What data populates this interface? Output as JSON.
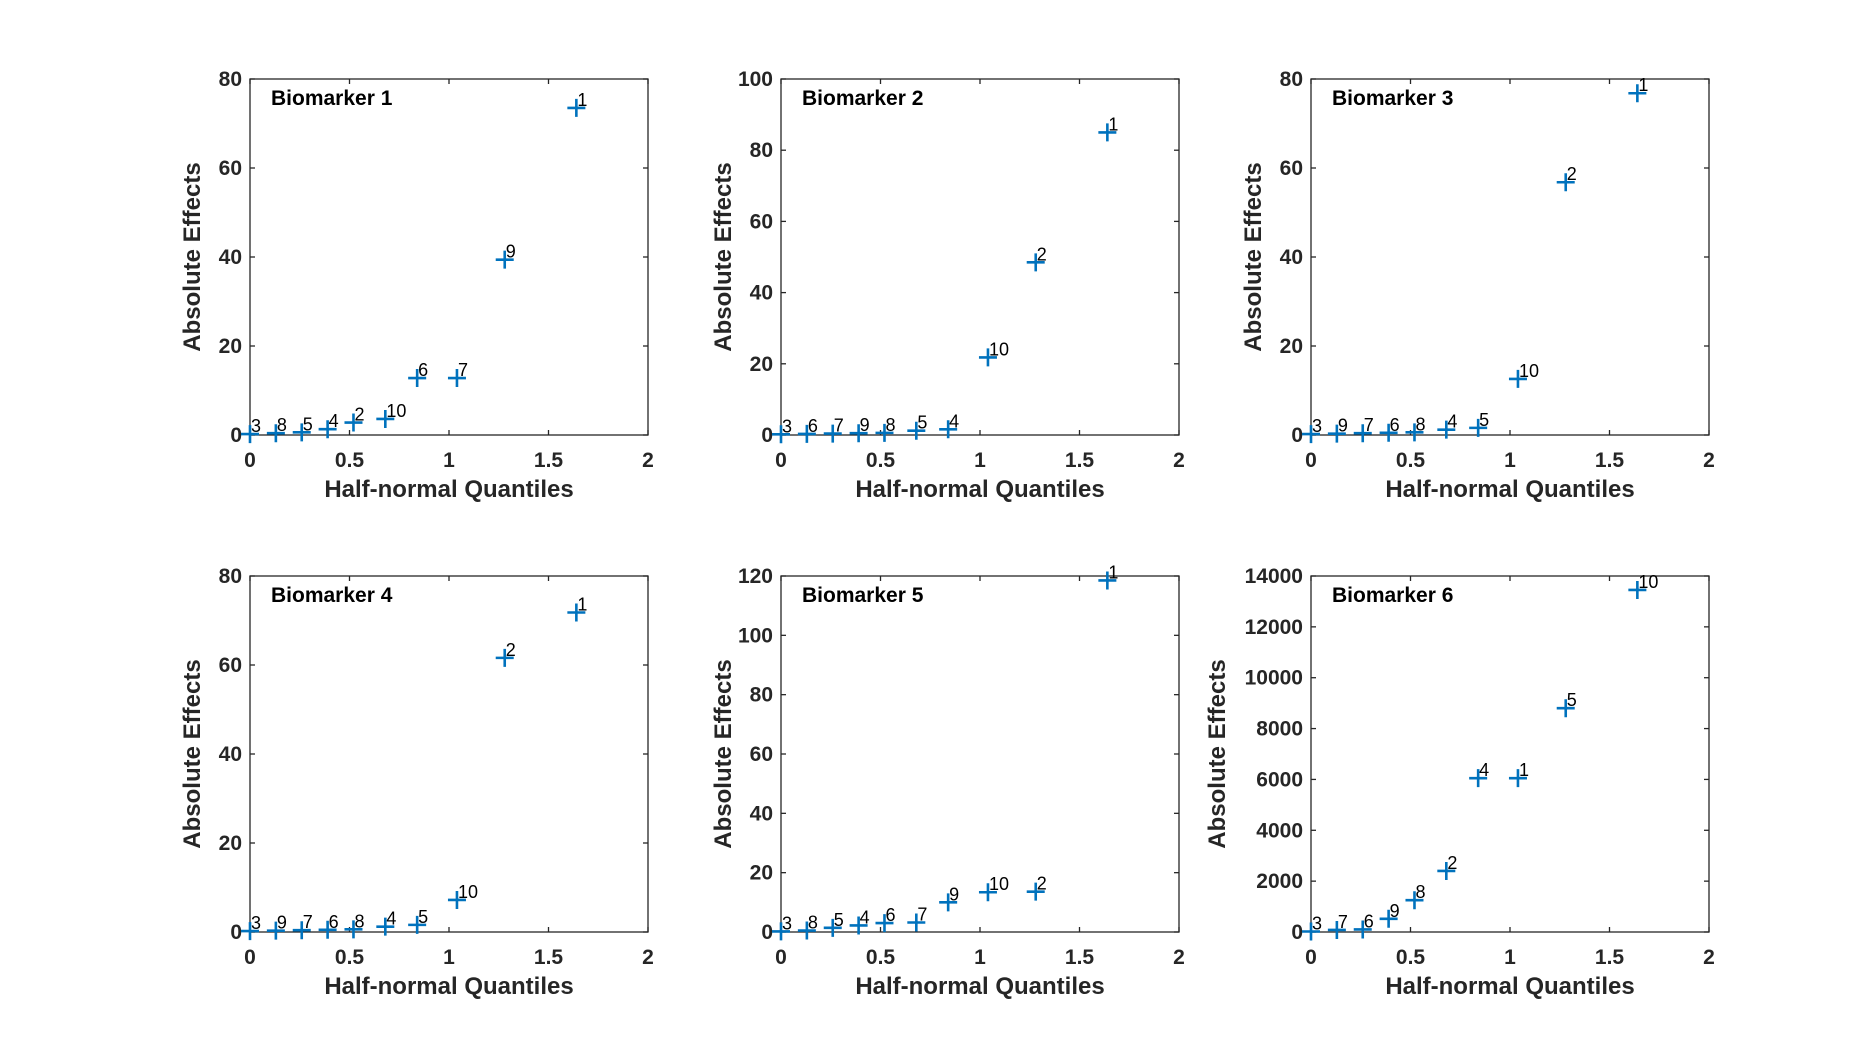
{
  "marker_color": "#0072BD",
  "chart_data": [
    {
      "type": "scatter",
      "title": "Biomarker 1",
      "xlabel": "Half-normal Quantiles",
      "ylabel": "Absolute Effects",
      "xlim": [
        0,
        2
      ],
      "ylim": [
        0,
        80
      ],
      "xticks": [
        0,
        0.5,
        1,
        1.5,
        2
      ],
      "xtick_labels": [
        "0",
        "0.5",
        "1",
        "1.5",
        "2"
      ],
      "yticks": [
        0,
        20,
        40,
        60,
        80
      ],
      "ytick_labels": [
        "0",
        "20",
        "40",
        "60",
        "80"
      ],
      "points": [
        {
          "x": 0.0,
          "y": 0.2,
          "label": "3"
        },
        {
          "x": 0.13,
          "y": 0.4,
          "label": "8"
        },
        {
          "x": 0.26,
          "y": 0.6,
          "label": "5"
        },
        {
          "x": 0.39,
          "y": 1.3,
          "label": "4"
        },
        {
          "x": 0.52,
          "y": 2.8,
          "label": "2"
        },
        {
          "x": 0.68,
          "y": 3.6,
          "label": "10"
        },
        {
          "x": 0.84,
          "y": 12.8,
          "label": "6"
        },
        {
          "x": 1.04,
          "y": 12.8,
          "label": "7"
        },
        {
          "x": 1.28,
          "y": 39.4,
          "label": "9"
        },
        {
          "x": 1.64,
          "y": 73.5,
          "label": "1"
        }
      ]
    },
    {
      "type": "scatter",
      "title": "Biomarker 2",
      "xlabel": "Half-normal Quantiles",
      "ylabel": "Absolute Effects",
      "xlim": [
        0,
        2
      ],
      "ylim": [
        0,
        100
      ],
      "xticks": [
        0,
        0.5,
        1,
        1.5,
        2
      ],
      "xtick_labels": [
        "0",
        "0.5",
        "1",
        "1.5",
        "2"
      ],
      "yticks": [
        0,
        20,
        40,
        60,
        80,
        100
      ],
      "ytick_labels": [
        "0",
        "20",
        "40",
        "60",
        "80",
        "100"
      ],
      "points": [
        {
          "x": 0.0,
          "y": 0.2,
          "label": "3"
        },
        {
          "x": 0.13,
          "y": 0.3,
          "label": "6"
        },
        {
          "x": 0.26,
          "y": 0.4,
          "label": "7"
        },
        {
          "x": 0.39,
          "y": 0.5,
          "label": "9"
        },
        {
          "x": 0.52,
          "y": 0.6,
          "label": "8"
        },
        {
          "x": 0.68,
          "y": 1.2,
          "label": "5"
        },
        {
          "x": 0.84,
          "y": 1.6,
          "label": "4"
        },
        {
          "x": 1.04,
          "y": 21.8,
          "label": "10"
        },
        {
          "x": 1.28,
          "y": 48.5,
          "label": "2"
        },
        {
          "x": 1.64,
          "y": 85.0,
          "label": "1"
        }
      ]
    },
    {
      "type": "scatter",
      "title": "Biomarker 3",
      "xlabel": "Half-normal Quantiles",
      "ylabel": "Absolute Effects",
      "xlim": [
        0,
        2
      ],
      "ylim": [
        0,
        80
      ],
      "xticks": [
        0,
        0.5,
        1,
        1.5,
        2
      ],
      "xtick_labels": [
        "0",
        "0.5",
        "1",
        "1.5",
        "2"
      ],
      "yticks": [
        0,
        20,
        40,
        60,
        80
      ],
      "ytick_labels": [
        "0",
        "20",
        "40",
        "60",
        "80"
      ],
      "points": [
        {
          "x": 0.0,
          "y": 0.2,
          "label": "3"
        },
        {
          "x": 0.13,
          "y": 0.3,
          "label": "9"
        },
        {
          "x": 0.26,
          "y": 0.4,
          "label": "7"
        },
        {
          "x": 0.39,
          "y": 0.5,
          "label": "6"
        },
        {
          "x": 0.52,
          "y": 0.6,
          "label": "8"
        },
        {
          "x": 0.68,
          "y": 1.2,
          "label": "4"
        },
        {
          "x": 0.84,
          "y": 1.6,
          "label": "5"
        },
        {
          "x": 1.04,
          "y": 12.6,
          "label": "10"
        },
        {
          "x": 1.28,
          "y": 56.8,
          "label": "2"
        },
        {
          "x": 1.64,
          "y": 76.8,
          "label": "1"
        }
      ]
    },
    {
      "type": "scatter",
      "title": "Biomarker 4",
      "xlabel": "Half-normal Quantiles",
      "ylabel": "Absolute Effects",
      "xlim": [
        0,
        2
      ],
      "ylim": [
        0,
        80
      ],
      "xticks": [
        0,
        0.5,
        1,
        1.5,
        2
      ],
      "xtick_labels": [
        "0",
        "0.5",
        "1",
        "1.5",
        "2"
      ],
      "yticks": [
        0,
        20,
        40,
        60,
        80
      ],
      "ytick_labels": [
        "0",
        "20",
        "40",
        "60",
        "80"
      ],
      "points": [
        {
          "x": 0.0,
          "y": 0.2,
          "label": "3"
        },
        {
          "x": 0.13,
          "y": 0.3,
          "label": "9"
        },
        {
          "x": 0.26,
          "y": 0.4,
          "label": "7"
        },
        {
          "x": 0.39,
          "y": 0.5,
          "label": "6"
        },
        {
          "x": 0.52,
          "y": 0.6,
          "label": "8"
        },
        {
          "x": 0.68,
          "y": 1.2,
          "label": "4"
        },
        {
          "x": 0.84,
          "y": 1.6,
          "label": "5"
        },
        {
          "x": 1.04,
          "y": 7.2,
          "label": "10"
        },
        {
          "x": 1.28,
          "y": 61.6,
          "label": "2"
        },
        {
          "x": 1.64,
          "y": 71.8,
          "label": "1"
        }
      ]
    },
    {
      "type": "scatter",
      "title": "Biomarker 5",
      "xlabel": "Half-normal Quantiles",
      "ylabel": "Absolute Effects",
      "xlim": [
        0,
        2
      ],
      "ylim": [
        0,
        120
      ],
      "xticks": [
        0,
        0.5,
        1,
        1.5,
        2
      ],
      "xtick_labels": [
        "0",
        "0.5",
        "1",
        "1.5",
        "2"
      ],
      "yticks": [
        0,
        20,
        40,
        60,
        80,
        100,
        120
      ],
      "ytick_labels": [
        "0",
        "20",
        "40",
        "60",
        "80",
        "100",
        "120"
      ],
      "points": [
        {
          "x": 0.0,
          "y": 0.2,
          "label": "3"
        },
        {
          "x": 0.13,
          "y": 0.5,
          "label": "8"
        },
        {
          "x": 0.26,
          "y": 1.4,
          "label": "5"
        },
        {
          "x": 0.39,
          "y": 2.2,
          "label": "4"
        },
        {
          "x": 0.52,
          "y": 3.0,
          "label": "6"
        },
        {
          "x": 0.68,
          "y": 3.2,
          "label": "7"
        },
        {
          "x": 0.84,
          "y": 10.0,
          "label": "9"
        },
        {
          "x": 1.04,
          "y": 13.4,
          "label": "10"
        },
        {
          "x": 1.28,
          "y": 13.6,
          "label": "2"
        },
        {
          "x": 1.64,
          "y": 118.5,
          "label": "1"
        }
      ]
    },
    {
      "type": "scatter",
      "title": "Biomarker 6",
      "xlabel": "Half-normal Quantiles",
      "ylabel": "Absolute Effects",
      "xlim": [
        0,
        2
      ],
      "ylim": [
        0,
        14000
      ],
      "xticks": [
        0,
        0.5,
        1,
        1.5,
        2
      ],
      "xtick_labels": [
        "0",
        "0.5",
        "1",
        "1.5",
        "2"
      ],
      "yticks": [
        0,
        2000,
        4000,
        6000,
        8000,
        10000,
        12000,
        14000
      ],
      "ytick_labels": [
        "0",
        "2000",
        "4000",
        "6000",
        "8000",
        "10000",
        "12000",
        "14000"
      ],
      "points": [
        {
          "x": 0.0,
          "y": 20,
          "label": "3"
        },
        {
          "x": 0.13,
          "y": 80,
          "label": "7"
        },
        {
          "x": 0.26,
          "y": 100,
          "label": "6"
        },
        {
          "x": 0.39,
          "y": 520,
          "label": "9"
        },
        {
          "x": 0.52,
          "y": 1250,
          "label": "8"
        },
        {
          "x": 0.68,
          "y": 2400,
          "label": "2"
        },
        {
          "x": 0.84,
          "y": 6050,
          "label": "4"
        },
        {
          "x": 1.04,
          "y": 6050,
          "label": "1"
        },
        {
          "x": 1.28,
          "y": 8800,
          "label": "5"
        },
        {
          "x": 1.64,
          "y": 13450,
          "label": "10"
        }
      ]
    }
  ]
}
